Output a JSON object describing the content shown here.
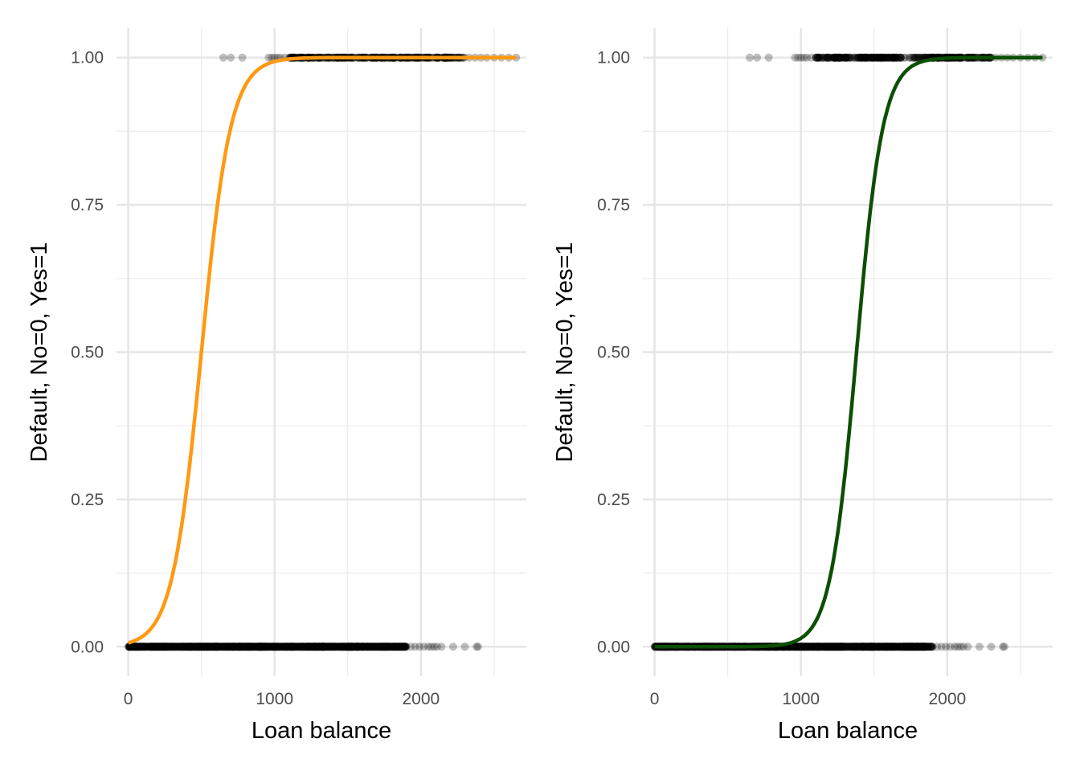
{
  "chart_data": [
    {
      "type": "scatter",
      "overlay": "logistic curve",
      "xlabel": "Loan balance",
      "ylabel": "Default, No=0, Yes=1",
      "xlim": [
        -80,
        2720
      ],
      "ylim": [
        -0.05,
        1.05
      ],
      "x_ticks": [
        0,
        1000,
        2000
      ],
      "x_minor_ticks": [
        500,
        1500,
        2500
      ],
      "y_ticks": [
        0.0,
        0.25,
        0.5,
        0.75,
        1.0
      ],
      "y_tick_labels": [
        "0.00",
        "0.25",
        "0.50",
        "0.75",
        "1.00"
      ],
      "grid": true,
      "curve": {
        "color": "#ff9912",
        "logistic_midpoint": 500,
        "logistic_scale": 100,
        "x_range": [
          0,
          2650
        ]
      },
      "points": {
        "color": "#000000",
        "opacity": 0.25,
        "y0_dense_range": [
          0,
          1900
        ],
        "y0_sparse": [
          1930,
          1960,
          1990,
          2020,
          2050,
          2070,
          2090,
          2110,
          2140,
          2220,
          2300,
          2380,
          2390
        ],
        "y1_dense_range": [
          1100,
          2300
        ],
        "y1_sparse": [
          650,
          700,
          780,
          960,
          980,
          1000,
          1020,
          1040,
          1070,
          2330,
          2370,
          2410,
          2450,
          2500,
          2550,
          2600,
          2650
        ]
      }
    },
    {
      "type": "scatter",
      "overlay": "logistic curve",
      "xlabel": "Loan balance",
      "ylabel": "Default, No=0, Yes=1",
      "xlim": [
        -80,
        2720
      ],
      "ylim": [
        -0.05,
        1.05
      ],
      "x_ticks": [
        0,
        1000,
        2000
      ],
      "x_minor_ticks": [
        500,
        1500,
        2500
      ],
      "y_ticks": [
        0.0,
        0.25,
        0.5,
        0.75,
        1.0
      ],
      "y_tick_labels": [
        "0.00",
        "0.25",
        "0.50",
        "0.75",
        "1.00"
      ],
      "grid": true,
      "curve": {
        "color": "#0b4f00",
        "logistic_midpoint": 1380,
        "logistic_scale": 90,
        "x_range": [
          0,
          2650
        ]
      },
      "points": {
        "color": "#000000",
        "opacity": 0.25,
        "y0_dense_range": [
          0,
          1900
        ],
        "y0_sparse": [
          1930,
          1960,
          1990,
          2020,
          2050,
          2070,
          2090,
          2110,
          2140,
          2220,
          2300,
          2380,
          2390
        ],
        "y1_dense_range": [
          1100,
          2300
        ],
        "y1_sparse": [
          650,
          700,
          780,
          960,
          980,
          1000,
          1020,
          1040,
          1070,
          2330,
          2370,
          2410,
          2450,
          2500,
          2550,
          2600,
          2650
        ]
      }
    }
  ]
}
